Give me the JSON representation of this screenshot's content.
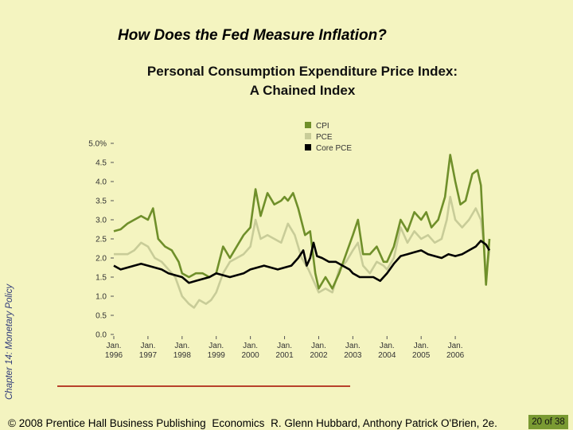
{
  "slide": {
    "title": "How Does the Fed Measure Inflation?",
    "side_label": "Chapter 14: Monetary Policy",
    "footer": {
      "copyright": "© 2008 Prentice Hall Business Publishing",
      "book": "Economics",
      "authors": "R. Glenn Hubbard, Anthony Patrick O'Brien, 2e.",
      "page_current": "20",
      "page_of": "of",
      "page_total": "38"
    }
  },
  "chart_data": {
    "type": "line",
    "title_line1": "Personal Consumption Expenditure Price Index:",
    "title_line2": "A Chained Index",
    "xlabel": "",
    "ylabel": "",
    "xlim": [
      1996.0,
      2007.0
    ],
    "ylim": [
      0,
      5.0
    ],
    "y_ticks": [
      "0.0",
      "0.5",
      "1.0",
      "1.5",
      "2.0",
      "2.5",
      "3.0",
      "3.5",
      "4.0",
      "4.5",
      "5.0%"
    ],
    "x_ticks": [
      {
        "month": "Jan.",
        "year": "1996",
        "x": 1996
      },
      {
        "month": "Jan.",
        "year": "1997",
        "x": 1997
      },
      {
        "month": "Jan.",
        "year": "1998",
        "x": 1998
      },
      {
        "month": "Jan.",
        "year": "1999",
        "x": 1999
      },
      {
        "month": "Jan.",
        "year": "2000",
        "x": 2000
      },
      {
        "month": "Jan.",
        "year": "2001",
        "x": 2001
      },
      {
        "month": "Jan.",
        "year": "2002",
        "x": 2002
      },
      {
        "month": "Jan.",
        "year": "2003",
        "x": 2003
      },
      {
        "month": "Jan.",
        "year": "2004",
        "x": 2004
      },
      {
        "month": "Jan.",
        "year": "2005",
        "x": 2005
      },
      {
        "month": "Jan.",
        "year": "2006",
        "x": 2006
      }
    ],
    "legend_position": "top-center",
    "grid": false,
    "series": [
      {
        "name": "CPI",
        "color": "#6f8f2a",
        "points": [
          [
            1996.0,
            2.7
          ],
          [
            1996.2,
            2.75
          ],
          [
            1996.4,
            2.9
          ],
          [
            1996.6,
            3.0
          ],
          [
            1996.8,
            3.1
          ],
          [
            1997.0,
            3.0
          ],
          [
            1997.15,
            3.3
          ],
          [
            1997.3,
            2.5
          ],
          [
            1997.5,
            2.3
          ],
          [
            1997.7,
            2.2
          ],
          [
            1997.9,
            1.9
          ],
          [
            1998.0,
            1.6
          ],
          [
            1998.2,
            1.5
          ],
          [
            1998.4,
            1.6
          ],
          [
            1998.6,
            1.6
          ],
          [
            1998.8,
            1.5
          ],
          [
            1999.0,
            1.6
          ],
          [
            1999.2,
            2.3
          ],
          [
            1999.4,
            2.0
          ],
          [
            1999.6,
            2.3
          ],
          [
            1999.8,
            2.6
          ],
          [
            2000.0,
            2.8
          ],
          [
            2000.15,
            3.8
          ],
          [
            2000.3,
            3.1
          ],
          [
            2000.5,
            3.7
          ],
          [
            2000.7,
            3.4
          ],
          [
            2000.9,
            3.5
          ],
          [
            2001.0,
            3.6
          ],
          [
            2001.1,
            3.5
          ],
          [
            2001.25,
            3.7
          ],
          [
            2001.4,
            3.3
          ],
          [
            2001.6,
            2.6
          ],
          [
            2001.75,
            2.7
          ],
          [
            2001.9,
            1.6
          ],
          [
            2002.0,
            1.2
          ],
          [
            2002.2,
            1.5
          ],
          [
            2002.4,
            1.2
          ],
          [
            2002.6,
            1.6
          ],
          [
            2002.8,
            2.1
          ],
          [
            2003.0,
            2.6
          ],
          [
            2003.15,
            3.0
          ],
          [
            2003.3,
            2.1
          ],
          [
            2003.5,
            2.1
          ],
          [
            2003.7,
            2.3
          ],
          [
            2003.9,
            1.9
          ],
          [
            2004.0,
            1.9
          ],
          [
            2004.2,
            2.3
          ],
          [
            2004.4,
            3.0
          ],
          [
            2004.6,
            2.7
          ],
          [
            2004.8,
            3.2
          ],
          [
            2005.0,
            3.0
          ],
          [
            2005.15,
            3.2
          ],
          [
            2005.3,
            2.8
          ],
          [
            2005.5,
            3.0
          ],
          [
            2005.7,
            3.6
          ],
          [
            2005.85,
            4.7
          ],
          [
            2006.0,
            4.0
          ],
          [
            2006.15,
            3.4
          ],
          [
            2006.3,
            3.5
          ],
          [
            2006.5,
            4.2
          ],
          [
            2006.65,
            4.3
          ],
          [
            2006.75,
            3.9
          ],
          [
            2006.85,
            2.1
          ],
          [
            2006.9,
            1.3
          ],
          [
            2007.0,
            2.5
          ]
        ]
      },
      {
        "name": "PCE",
        "color": "#c8cc98",
        "points": [
          [
            1996.0,
            2.1
          ],
          [
            1996.2,
            2.1
          ],
          [
            1996.4,
            2.1
          ],
          [
            1996.6,
            2.2
          ],
          [
            1996.8,
            2.4
          ],
          [
            1997.0,
            2.3
          ],
          [
            1997.2,
            2.0
          ],
          [
            1997.4,
            1.9
          ],
          [
            1997.6,
            1.7
          ],
          [
            1997.8,
            1.5
          ],
          [
            1998.0,
            1.0
          ],
          [
            1998.2,
            0.8
          ],
          [
            1998.35,
            0.7
          ],
          [
            1998.5,
            0.9
          ],
          [
            1998.7,
            0.8
          ],
          [
            1998.85,
            0.9
          ],
          [
            1999.0,
            1.1
          ],
          [
            1999.2,
            1.6
          ],
          [
            1999.4,
            1.9
          ],
          [
            1999.6,
            2.0
          ],
          [
            1999.8,
            2.1
          ],
          [
            2000.0,
            2.3
          ],
          [
            2000.15,
            3.0
          ],
          [
            2000.3,
            2.5
          ],
          [
            2000.5,
            2.6
          ],
          [
            2000.7,
            2.5
          ],
          [
            2000.9,
            2.4
          ],
          [
            2001.1,
            2.9
          ],
          [
            2001.3,
            2.6
          ],
          [
            2001.5,
            2.0
          ],
          [
            2001.7,
            1.7
          ],
          [
            2001.9,
            1.3
          ],
          [
            2002.0,
            1.1
          ],
          [
            2002.2,
            1.2
          ],
          [
            2002.4,
            1.1
          ],
          [
            2002.6,
            1.7
          ],
          [
            2002.8,
            1.9
          ],
          [
            2003.0,
            2.2
          ],
          [
            2003.15,
            2.4
          ],
          [
            2003.3,
            1.8
          ],
          [
            2003.5,
            1.6
          ],
          [
            2003.7,
            1.9
          ],
          [
            2003.9,
            1.8
          ],
          [
            2004.0,
            1.7
          ],
          [
            2004.2,
            2.0
          ],
          [
            2004.4,
            2.8
          ],
          [
            2004.6,
            2.4
          ],
          [
            2004.8,
            2.7
          ],
          [
            2005.0,
            2.5
          ],
          [
            2005.2,
            2.6
          ],
          [
            2005.4,
            2.4
          ],
          [
            2005.6,
            2.5
          ],
          [
            2005.75,
            3.0
          ],
          [
            2005.85,
            3.6
          ],
          [
            2006.0,
            3.0
          ],
          [
            2006.2,
            2.8
          ],
          [
            2006.4,
            3.0
          ],
          [
            2006.6,
            3.3
          ],
          [
            2006.75,
            3.0
          ],
          [
            2006.85,
            2.2
          ],
          [
            2006.9,
            1.5
          ],
          [
            2007.0,
            2.2
          ]
        ]
      },
      {
        "name": "Core PCE",
        "color": "#000000",
        "points": [
          [
            1996.0,
            1.8
          ],
          [
            1996.2,
            1.7
          ],
          [
            1996.4,
            1.75
          ],
          [
            1996.6,
            1.8
          ],
          [
            1996.8,
            1.85
          ],
          [
            1997.0,
            1.8
          ],
          [
            1997.2,
            1.75
          ],
          [
            1997.4,
            1.7
          ],
          [
            1997.6,
            1.6
          ],
          [
            1997.8,
            1.55
          ],
          [
            1998.0,
            1.5
          ],
          [
            1998.2,
            1.35
          ],
          [
            1998.4,
            1.4
          ],
          [
            1998.6,
            1.45
          ],
          [
            1998.8,
            1.5
          ],
          [
            1999.0,
            1.6
          ],
          [
            1999.2,
            1.55
          ],
          [
            1999.4,
            1.5
          ],
          [
            1999.6,
            1.55
          ],
          [
            1999.8,
            1.6
          ],
          [
            2000.0,
            1.7
          ],
          [
            2000.2,
            1.75
          ],
          [
            2000.4,
            1.8
          ],
          [
            2000.6,
            1.75
          ],
          [
            2000.8,
            1.7
          ],
          [
            2001.0,
            1.75
          ],
          [
            2001.2,
            1.8
          ],
          [
            2001.4,
            2.0
          ],
          [
            2001.55,
            2.2
          ],
          [
            2001.65,
            1.8
          ],
          [
            2001.75,
            2.0
          ],
          [
            2001.85,
            2.4
          ],
          [
            2001.95,
            2.05
          ],
          [
            2002.1,
            2.0
          ],
          [
            2002.3,
            1.9
          ],
          [
            2002.5,
            1.9
          ],
          [
            2002.7,
            1.8
          ],
          [
            2002.9,
            1.7
          ],
          [
            2003.0,
            1.6
          ],
          [
            2003.2,
            1.5
          ],
          [
            2003.4,
            1.5
          ],
          [
            2003.6,
            1.5
          ],
          [
            2003.8,
            1.4
          ],
          [
            2004.0,
            1.6
          ],
          [
            2004.2,
            1.85
          ],
          [
            2004.4,
            2.05
          ],
          [
            2004.6,
            2.1
          ],
          [
            2004.8,
            2.15
          ],
          [
            2005.0,
            2.2
          ],
          [
            2005.2,
            2.1
          ],
          [
            2005.4,
            2.05
          ],
          [
            2005.6,
            2.0
          ],
          [
            2005.8,
            2.1
          ],
          [
            2006.0,
            2.05
          ],
          [
            2006.2,
            2.1
          ],
          [
            2006.4,
            2.2
          ],
          [
            2006.6,
            2.3
          ],
          [
            2006.75,
            2.45
          ],
          [
            2006.9,
            2.35
          ],
          [
            2007.0,
            2.2
          ]
        ]
      }
    ]
  }
}
